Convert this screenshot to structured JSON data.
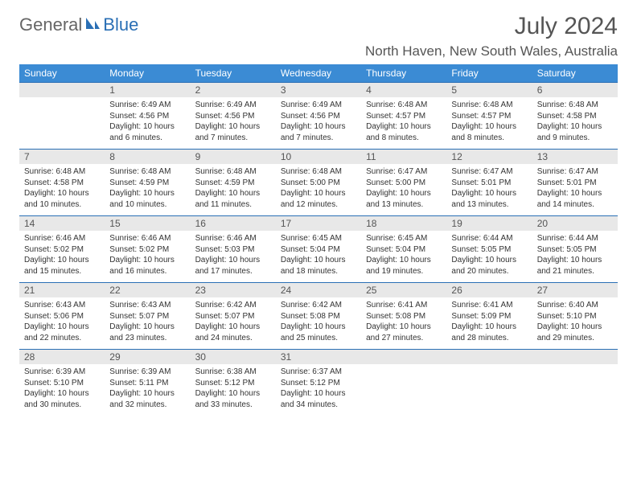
{
  "logo": {
    "general": "General",
    "blue": "Blue"
  },
  "title": "July 2024",
  "location": "North Haven, New South Wales, Australia",
  "colors": {
    "header_bg": "#3b8bd4",
    "header_text": "#ffffff",
    "daynum_bg": "#e8e8e8",
    "border": "#2a6fb5",
    "text": "#333333",
    "title_text": "#555555"
  },
  "day_headers": [
    "Sunday",
    "Monday",
    "Tuesday",
    "Wednesday",
    "Thursday",
    "Friday",
    "Saturday"
  ],
  "weeks": [
    [
      null,
      {
        "d": "1",
        "sr": "6:49 AM",
        "ss": "4:56 PM",
        "dl": "10 hours and 6 minutes."
      },
      {
        "d": "2",
        "sr": "6:49 AM",
        "ss": "4:56 PM",
        "dl": "10 hours and 7 minutes."
      },
      {
        "d": "3",
        "sr": "6:49 AM",
        "ss": "4:56 PM",
        "dl": "10 hours and 7 minutes."
      },
      {
        "d": "4",
        "sr": "6:48 AM",
        "ss": "4:57 PM",
        "dl": "10 hours and 8 minutes."
      },
      {
        "d": "5",
        "sr": "6:48 AM",
        "ss": "4:57 PM",
        "dl": "10 hours and 8 minutes."
      },
      {
        "d": "6",
        "sr": "6:48 AM",
        "ss": "4:58 PM",
        "dl": "10 hours and 9 minutes."
      }
    ],
    [
      {
        "d": "7",
        "sr": "6:48 AM",
        "ss": "4:58 PM",
        "dl": "10 hours and 10 minutes."
      },
      {
        "d": "8",
        "sr": "6:48 AM",
        "ss": "4:59 PM",
        "dl": "10 hours and 10 minutes."
      },
      {
        "d": "9",
        "sr": "6:48 AM",
        "ss": "4:59 PM",
        "dl": "10 hours and 11 minutes."
      },
      {
        "d": "10",
        "sr": "6:48 AM",
        "ss": "5:00 PM",
        "dl": "10 hours and 12 minutes."
      },
      {
        "d": "11",
        "sr": "6:47 AM",
        "ss": "5:00 PM",
        "dl": "10 hours and 13 minutes."
      },
      {
        "d": "12",
        "sr": "6:47 AM",
        "ss": "5:01 PM",
        "dl": "10 hours and 13 minutes."
      },
      {
        "d": "13",
        "sr": "6:47 AM",
        "ss": "5:01 PM",
        "dl": "10 hours and 14 minutes."
      }
    ],
    [
      {
        "d": "14",
        "sr": "6:46 AM",
        "ss": "5:02 PM",
        "dl": "10 hours and 15 minutes."
      },
      {
        "d": "15",
        "sr": "6:46 AM",
        "ss": "5:02 PM",
        "dl": "10 hours and 16 minutes."
      },
      {
        "d": "16",
        "sr": "6:46 AM",
        "ss": "5:03 PM",
        "dl": "10 hours and 17 minutes."
      },
      {
        "d": "17",
        "sr": "6:45 AM",
        "ss": "5:04 PM",
        "dl": "10 hours and 18 minutes."
      },
      {
        "d": "18",
        "sr": "6:45 AM",
        "ss": "5:04 PM",
        "dl": "10 hours and 19 minutes."
      },
      {
        "d": "19",
        "sr": "6:44 AM",
        "ss": "5:05 PM",
        "dl": "10 hours and 20 minutes."
      },
      {
        "d": "20",
        "sr": "6:44 AM",
        "ss": "5:05 PM",
        "dl": "10 hours and 21 minutes."
      }
    ],
    [
      {
        "d": "21",
        "sr": "6:43 AM",
        "ss": "5:06 PM",
        "dl": "10 hours and 22 minutes."
      },
      {
        "d": "22",
        "sr": "6:43 AM",
        "ss": "5:07 PM",
        "dl": "10 hours and 23 minutes."
      },
      {
        "d": "23",
        "sr": "6:42 AM",
        "ss": "5:07 PM",
        "dl": "10 hours and 24 minutes."
      },
      {
        "d": "24",
        "sr": "6:42 AM",
        "ss": "5:08 PM",
        "dl": "10 hours and 25 minutes."
      },
      {
        "d": "25",
        "sr": "6:41 AM",
        "ss": "5:08 PM",
        "dl": "10 hours and 27 minutes."
      },
      {
        "d": "26",
        "sr": "6:41 AM",
        "ss": "5:09 PM",
        "dl": "10 hours and 28 minutes."
      },
      {
        "d": "27",
        "sr": "6:40 AM",
        "ss": "5:10 PM",
        "dl": "10 hours and 29 minutes."
      }
    ],
    [
      {
        "d": "28",
        "sr": "6:39 AM",
        "ss": "5:10 PM",
        "dl": "10 hours and 30 minutes."
      },
      {
        "d": "29",
        "sr": "6:39 AM",
        "ss": "5:11 PM",
        "dl": "10 hours and 32 minutes."
      },
      {
        "d": "30",
        "sr": "6:38 AM",
        "ss": "5:12 PM",
        "dl": "10 hours and 33 minutes."
      },
      {
        "d": "31",
        "sr": "6:37 AM",
        "ss": "5:12 PM",
        "dl": "10 hours and 34 minutes."
      },
      null,
      null,
      null
    ]
  ],
  "labels": {
    "sunrise": "Sunrise: ",
    "sunset": "Sunset: ",
    "daylight": "Daylight: "
  }
}
